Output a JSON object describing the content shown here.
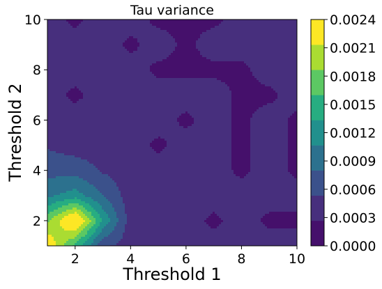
{
  "chart_data": {
    "type": "contour",
    "title": "Tau variance",
    "xlabel": "Threshold 1",
    "ylabel": "Threshold 2",
    "xlim": [
      1,
      10
    ],
    "ylim": [
      1,
      10
    ],
    "x_ticks": [
      "2",
      "4",
      "6",
      "8",
      "10"
    ],
    "y_ticks": [
      "2",
      "4",
      "6",
      "8",
      "10"
    ],
    "colorbar": {
      "range": [
        0,
        0.0024
      ],
      "ticks": [
        "0.0000",
        "0.0003",
        "0.0006",
        "0.0009",
        "0.0012",
        "0.0015",
        "0.0018",
        "0.0021",
        "0.0024"
      ],
      "colors": [
        "#45106b",
        "#472f7d",
        "#3b518b",
        "#2c718e",
        "#21908d",
        "#27ad81",
        "#5cc863",
        "#aadc32",
        "#fde725"
      ]
    },
    "x": [
      1,
      2,
      3,
      4,
      5,
      6,
      7,
      8,
      9,
      10
    ],
    "y": [
      1,
      2,
      3,
      4,
      5,
      6,
      7,
      8,
      9,
      10
    ],
    "z": [
      [
        0.0024,
        0.0015,
        0.0006,
        0.0004,
        0.0004,
        0.0004,
        0.0004,
        0.0004,
        0.0004,
        0.0004
      ],
      [
        0.0018,
        0.0026,
        0.0013,
        0.0004,
        0.0004,
        0.0004,
        0.0002,
        0.0004,
        0.0002,
        0.0002
      ],
      [
        0.001,
        0.0012,
        0.0008,
        0.0004,
        0.0004,
        0.0004,
        0.0004,
        0.0004,
        0.0004,
        0.0004
      ],
      [
        0.0007,
        0.0007,
        0.0005,
        0.0004,
        0.0004,
        0.0004,
        0.0004,
        0.0002,
        0.0004,
        0.0002
      ],
      [
        0.0005,
        0.0004,
        0.0004,
        0.0004,
        0.0002,
        0.0004,
        0.0004,
        0.0002,
        0.0004,
        0.0002
      ],
      [
        0.0005,
        0.0004,
        0.0004,
        0.0004,
        0.0004,
        0.0002,
        0.0004,
        0.0002,
        0.0004,
        0.0002
      ],
      [
        0.0004,
        0.0002,
        0.0004,
        0.0004,
        0.0004,
        0.0004,
        0.0004,
        0.0002,
        0.0002,
        0.0004
      ],
      [
        0.0004,
        0.0004,
        0.0004,
        0.0004,
        0.0002,
        0.0002,
        0.0002,
        0.0002,
        0.0004,
        0.0004
      ],
      [
        0.0004,
        0.0004,
        0.0004,
        0.0002,
        0.0004,
        0.0002,
        0.0004,
        0.0004,
        0.0004,
        0.0004
      ],
      [
        0.0004,
        0.0002,
        0.0004,
        0.0004,
        0.0002,
        0.0002,
        0.0002,
        0.0004,
        0.0004,
        0.0004
      ]
    ]
  }
}
